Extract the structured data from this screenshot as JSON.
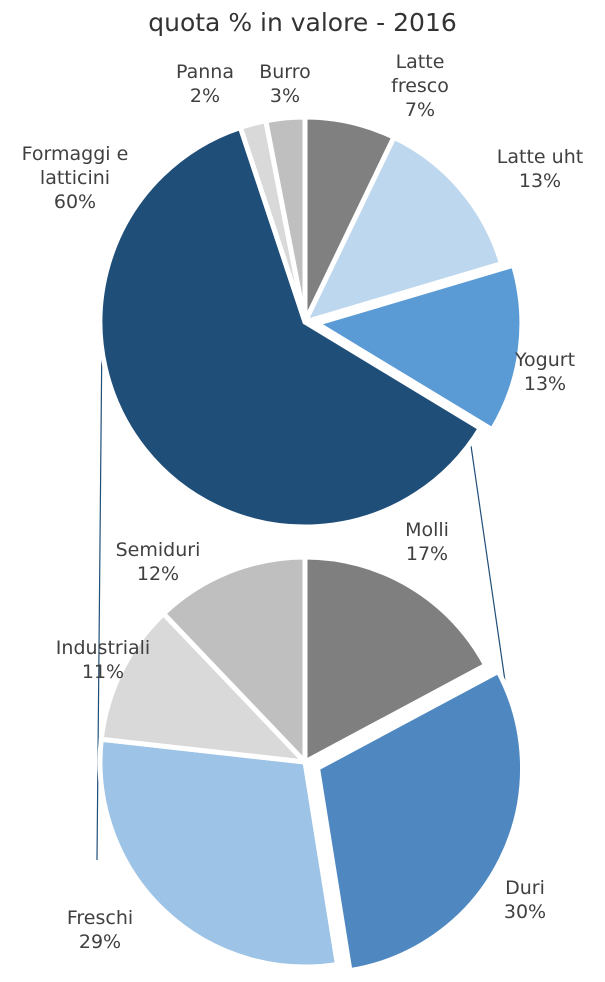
{
  "chart_data": [
    {
      "type": "pie",
      "title": "quota % in valore - 2016",
      "categories": [
        "Latte fresco",
        "Latte uht",
        "Yogurt",
        "Formaggi e latticini",
        "Panna",
        "Burro"
      ],
      "values": [
        7,
        13,
        13,
        60,
        2,
        3
      ],
      "value_labels": [
        "7%",
        "13%",
        "13%",
        "60%",
        "2%",
        "3%"
      ],
      "colors": [
        "#808080",
        "#bdd7ee",
        "#5b9bd5",
        "#1f4e79",
        "#d9d9d9",
        "#bfbfbf"
      ]
    },
    {
      "type": "pie",
      "categories": [
        "Molli",
        "Duri",
        "Freschi",
        "Industriali",
        "Semiduri"
      ],
      "values": [
        17,
        30,
        29,
        11,
        12
      ],
      "value_labels": [
        "17%",
        "30%",
        "29%",
        "11%",
        "12%"
      ],
      "colors": [
        "#7f7f7f",
        "#4f88c0",
        "#9dc3e6",
        "#d9d9d9",
        "#bfbfbf"
      ]
    }
  ]
}
